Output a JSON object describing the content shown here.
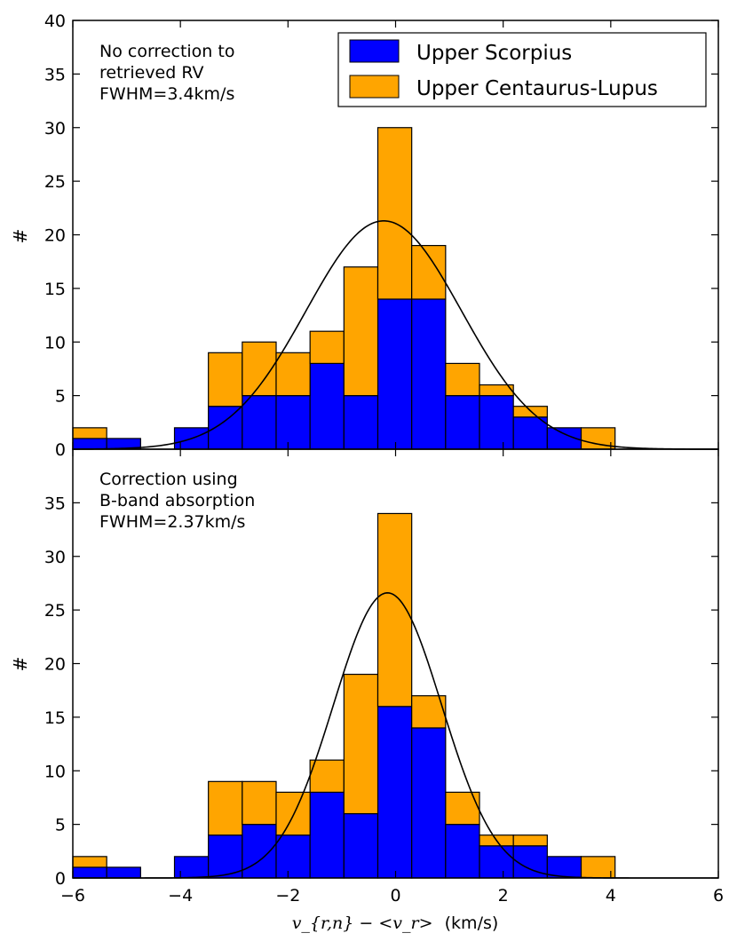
{
  "chart_data": {
    "type": "bar",
    "stacked": true,
    "x_axis": {
      "label_math": "v_{r,n} − <v_r>",
      "label_unit": "(km/s)",
      "range": [
        -6,
        6
      ],
      "ticks": [
        -6,
        -4,
        -2,
        0,
        2,
        4,
        6
      ],
      "tick_labels": [
        "−6",
        "−4",
        "−2",
        "0",
        "2",
        "4",
        "6"
      ]
    },
    "legend": {
      "placement": "top-right",
      "entries": [
        {
          "name": "Upper Scorpius",
          "color": "#0000ff"
        },
        {
          "name": "Upper Centaurus-Lupus",
          "color": "#ffa500"
        }
      ]
    },
    "bin_edges": [
      -6.0,
      -5.37,
      -4.74,
      -4.11,
      -3.48,
      -2.85,
      -2.22,
      -1.59,
      -0.96,
      -0.33,
      0.3,
      0.93,
      1.56,
      2.19,
      2.82,
      3.45,
      4.08
    ],
    "fit_color": "#000000",
    "panels": [
      {
        "ylabel": "#",
        "ylim": [
          0,
          40
        ],
        "yticks": [
          0,
          5,
          10,
          15,
          20,
          25,
          30,
          35,
          40
        ],
        "annotation": [
          "No correction to",
          "retrieved RV",
          "FWHM=3.4km/s"
        ],
        "series": [
          {
            "name": "Upper Scorpius",
            "values": [
              1,
              1,
              0,
              2,
              4,
              5,
              5,
              8,
              5,
              14,
              14,
              5,
              5,
              3,
              2,
              0
            ]
          },
          {
            "name": "Upper Centaurus-Lupus",
            "values": [
              1,
              0,
              0,
              0,
              5,
              5,
              4,
              3,
              12,
              16,
              5,
              3,
              1,
              1,
              0,
              2
            ]
          }
        ],
        "fit": {
          "type": "gaussian",
          "amplitude": 21.3,
          "center": -0.22,
          "fwhm": 3.4
        }
      },
      {
        "ylabel": "#",
        "ylim": [
          0,
          40
        ],
        "yticks": [
          0,
          5,
          10,
          15,
          20,
          25,
          30,
          35
        ],
        "annotation": [
          "Correction using",
          "B-band absorption",
          "FWHM=2.37km/s"
        ],
        "series": [
          {
            "name": "Upper Scorpius",
            "values": [
              1,
              1,
              0,
              2,
              4,
              5,
              4,
              8,
              6,
              16,
              14,
              5,
              3,
              3,
              2,
              0
            ]
          },
          {
            "name": "Upper Centaurus-Lupus",
            "values": [
              1,
              0,
              0,
              0,
              5,
              4,
              4,
              3,
              13,
              18,
              3,
              3,
              1,
              1,
              0,
              2
            ]
          }
        ],
        "fit": {
          "type": "gaussian",
          "amplitude": 26.6,
          "center": -0.15,
          "fwhm": 2.37
        }
      }
    ]
  }
}
